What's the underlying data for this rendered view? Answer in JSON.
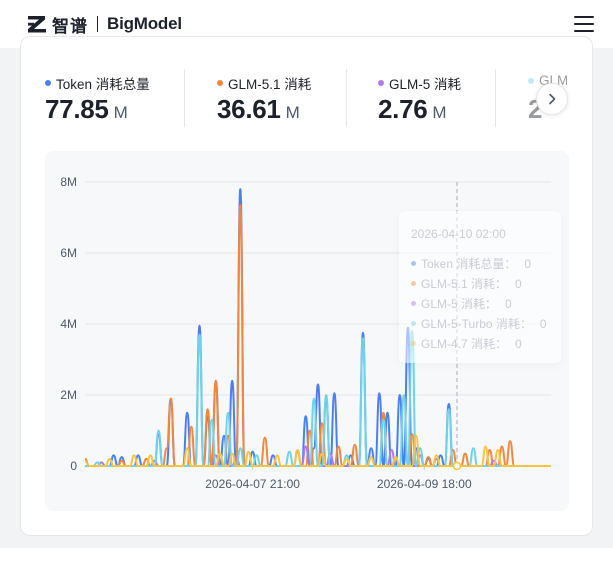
{
  "header": {
    "logo_cn": "智谱",
    "logo_en": "BigModel"
  },
  "colors": {
    "token": "#4a7ff0",
    "glm51": "#f0873c",
    "glm5": "#b27ae8",
    "glm5turbo": "#6fd3e8",
    "glm47": "#f5c542"
  },
  "stats": [
    {
      "label": "Token 消耗总量",
      "value": "77.85",
      "unit": "M",
      "color": "#4a7ff0"
    },
    {
      "label": "GLM-5.1 消耗",
      "value": "36.61",
      "unit": "M",
      "color": "#f0873c"
    },
    {
      "label": "GLM-5 消耗",
      "value": "2.76",
      "unit": "M",
      "color": "#b27ae8"
    },
    {
      "label": "GLM",
      "value": "2",
      "unit": "",
      "color": "#6fd3e8"
    }
  ],
  "tooltip": {
    "time": "2026-04-10 02:00",
    "rows": [
      {
        "label": "Token 消耗总量：",
        "value": "0",
        "color": "#4a7ff0"
      },
      {
        "label": "GLM-5.1 消耗：",
        "value": "0",
        "color": "#f0873c"
      },
      {
        "label": "GLM-5 消耗：",
        "value": "0",
        "color": "#b27ae8"
      },
      {
        "label": "GLM-5-Turbo 消耗：",
        "value": "0",
        "color": "#6fd3e8"
      },
      {
        "label": "GLM-4.7 消耗：",
        "value": "0",
        "color": "#f5c542"
      }
    ]
  },
  "chart_data": {
    "type": "line",
    "ylim": [
      0,
      8
    ],
    "y_ticks": [
      {
        "value": 8,
        "label": "8M"
      },
      {
        "value": 6,
        "label": "6M"
      },
      {
        "value": 4,
        "label": "4M"
      },
      {
        "value": 2,
        "label": "2M"
      },
      {
        "value": 0,
        "label": "0"
      }
    ],
    "x_count": 115,
    "x_ticks": [
      {
        "index": 41,
        "label": "2026-04-07 21:00"
      },
      {
        "index": 83,
        "label": "2026-04-09 18:00"
      }
    ],
    "hover_index": 91,
    "series": [
      {
        "name": "Token 消耗总量",
        "color": "#4a7ff0",
        "points": [
          [
            0,
            0.2
          ],
          [
            7,
            0.3
          ],
          [
            9,
            0.25
          ],
          [
            13,
            0.3
          ],
          [
            18,
            0.9
          ],
          [
            21,
            1.9
          ],
          [
            25,
            1.5
          ],
          [
            28,
            3.95
          ],
          [
            30,
            1.4
          ],
          [
            32,
            2.4
          ],
          [
            34,
            0.85
          ],
          [
            36,
            2.4
          ],
          [
            38,
            7.8
          ],
          [
            41,
            0.4
          ],
          [
            46,
            0.3
          ],
          [
            54,
            1.4
          ],
          [
            56,
            0.5
          ],
          [
            57,
            2.3
          ],
          [
            59,
            1.9
          ],
          [
            61,
            2.05
          ],
          [
            65,
            0.3
          ],
          [
            68,
            3.75
          ],
          [
            70,
            0.5
          ],
          [
            72,
            2.05
          ],
          [
            74,
            1.5
          ],
          [
            77,
            2.0
          ],
          [
            79,
            3.9
          ],
          [
            81,
            0.5
          ],
          [
            84,
            0.2
          ],
          [
            87,
            0.3
          ],
          [
            89,
            1.75
          ]
        ]
      },
      {
        "name": "GLM-5.1 消耗",
        "color": "#f0873c",
        "points": [
          [
            0,
            0.2
          ],
          [
            9,
            0.15
          ],
          [
            15,
            0.2
          ],
          [
            20,
            0.5
          ],
          [
            21,
            1.9
          ],
          [
            26,
            1.1
          ],
          [
            30,
            1.6
          ],
          [
            32,
            2.4
          ],
          [
            35,
            0.85
          ],
          [
            38,
            7.35
          ],
          [
            44,
            0.8
          ],
          [
            52,
            0.4
          ],
          [
            55,
            1.0
          ],
          [
            58,
            1.2
          ],
          [
            62,
            0.55
          ],
          [
            66,
            0.6
          ],
          [
            73,
            1.5
          ],
          [
            80,
            0.9
          ],
          [
            84,
            0.25
          ],
          [
            90,
            0.45
          ],
          [
            93,
            0.35
          ],
          [
            99,
            0.45
          ],
          [
            102,
            0.55
          ],
          [
            104,
            0.7
          ]
        ]
      },
      {
        "name": "GLM-5 消耗",
        "color": "#b27ae8",
        "points": [
          [
            4,
            0.1
          ],
          [
            17,
            0.15
          ],
          [
            32,
            0.3
          ],
          [
            37,
            0.25
          ],
          [
            54,
            0.55
          ],
          [
            60,
            0.35
          ],
          [
            75,
            0.45
          ],
          [
            82,
            0.3
          ],
          [
            86,
            0.2
          ],
          [
            100,
            0.15
          ]
        ]
      },
      {
        "name": "GLM-5-Turbo 消耗",
        "color": "#6fd3e8",
        "points": [
          [
            3,
            0.1
          ],
          [
            18,
            1.0
          ],
          [
            28,
            3.7
          ],
          [
            31,
            1.3
          ],
          [
            35,
            1.5
          ],
          [
            38,
            0.5
          ],
          [
            42,
            0.3
          ],
          [
            50,
            0.4
          ],
          [
            56,
            1.9
          ],
          [
            59,
            2.0
          ],
          [
            64,
            0.3
          ],
          [
            68,
            3.6
          ],
          [
            73,
            1.3
          ],
          [
            78,
            2.0
          ],
          [
            80,
            3.8
          ],
          [
            82,
            0.5
          ],
          [
            89,
            1.6
          ],
          [
            95,
            0.5
          ]
        ]
      },
      {
        "name": "GLM-4.7 消耗",
        "color": "#f5c542",
        "points": [
          [
            0,
            0.15
          ],
          [
            6,
            0.2
          ],
          [
            12,
            0.3
          ],
          [
            16,
            0.3
          ],
          [
            25,
            0.5
          ],
          [
            33,
            0.35
          ],
          [
            36,
            0.35
          ],
          [
            40,
            0.4
          ],
          [
            47,
            0.3
          ],
          [
            52,
            0.45
          ],
          [
            58,
            0.35
          ],
          [
            64,
            0.2
          ],
          [
            70,
            0.25
          ],
          [
            76,
            0.25
          ],
          [
            81,
            0.85
          ],
          [
            86,
            0.3
          ],
          [
            98,
            0.55
          ],
          [
            101,
            0.45
          ]
        ]
      }
    ]
  }
}
